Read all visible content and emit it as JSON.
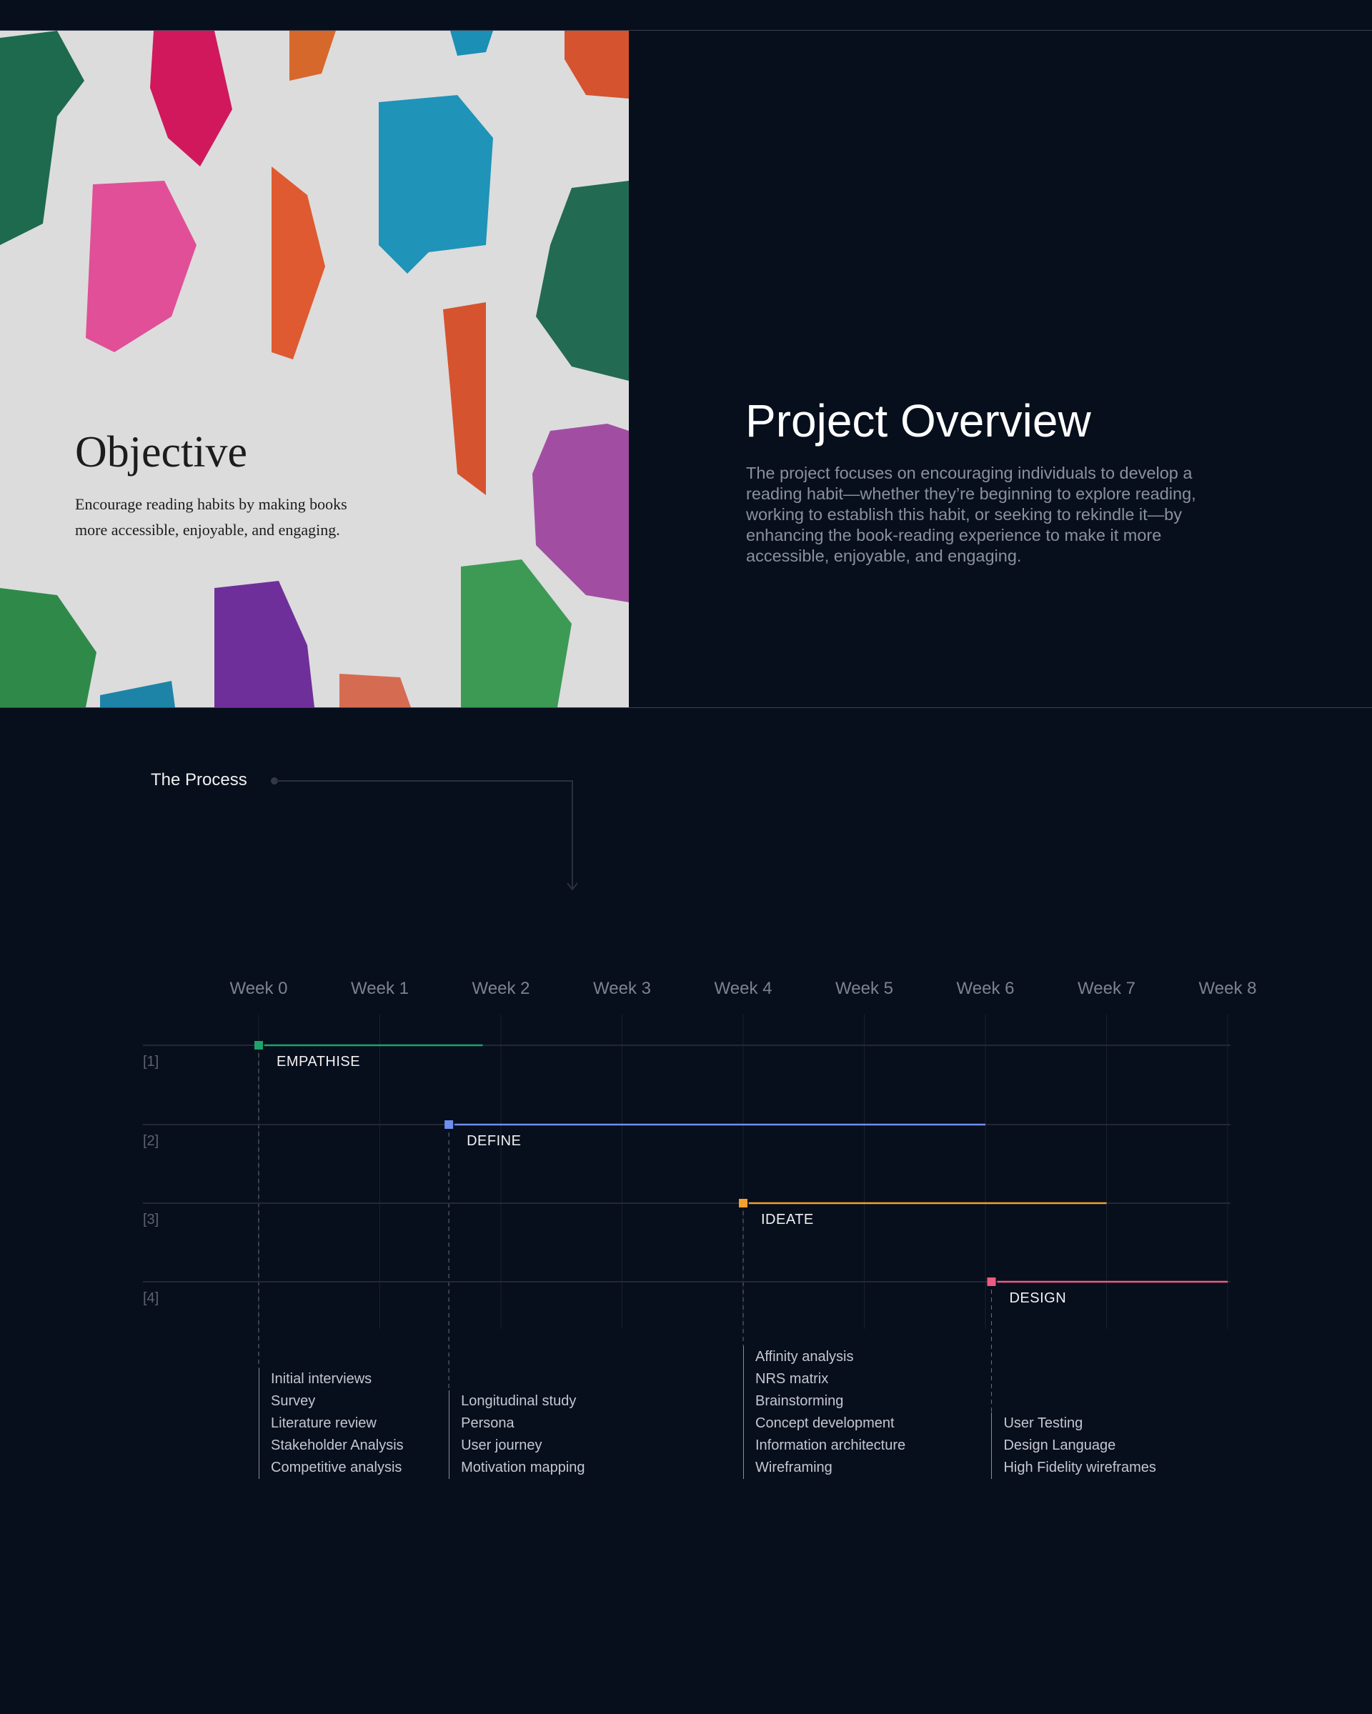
{
  "objective": {
    "title": "Objective",
    "text": "Encourage reading habits by making books more accessible, enjoyable, and engaging."
  },
  "overview": {
    "title": "Project Overview",
    "text": "The project focuses on encouraging individuals to develop a reading habit—whether they’re beginning to explore reading, working to establish this habit, or seeking to rekindle it—by enhancing the book-reading experience to make it more accessible, enjoyable, and engaging."
  },
  "process": {
    "label": "The Process"
  },
  "chart_data": {
    "type": "gantt",
    "weeks": [
      "Week 0",
      "Week 1",
      "Week 2",
      "Week 3",
      "Week 4",
      "Week 5",
      "Week 6",
      "Week 7",
      "Week 8"
    ],
    "rows": [
      {
        "index": "[1]",
        "phase": "EMPATHISE",
        "start": 0,
        "end": 1.85,
        "color": "#1fa36a",
        "tasks": [
          "Initial interviews",
          "Survey",
          "Literature review",
          "Stakeholder Analysis",
          "Competitive analysis"
        ]
      },
      {
        "index": "[2]",
        "phase": "DEFINE",
        "start": 1.57,
        "end": 6.0,
        "color": "#6f8ff0",
        "tasks": [
          "Longitudinal study",
          "Persona",
          "User journey",
          "Motivation mapping"
        ]
      },
      {
        "index": "[3]",
        "phase": "IDEATE",
        "start": 4.0,
        "end": 7.0,
        "color": "#f5a02e",
        "tasks": [
          "Affinity analysis",
          "NRS matrix",
          "Brainstorming",
          "Concept development",
          "Information architecture",
          "Wireframing"
        ]
      },
      {
        "index": "[4]",
        "phase": "DESIGN",
        "start": 6.05,
        "end": 8.0,
        "color": "#ec5b82",
        "tasks": [
          "User Testing",
          "Design Language",
          "High Fidelity wireframes"
        ]
      }
    ]
  }
}
